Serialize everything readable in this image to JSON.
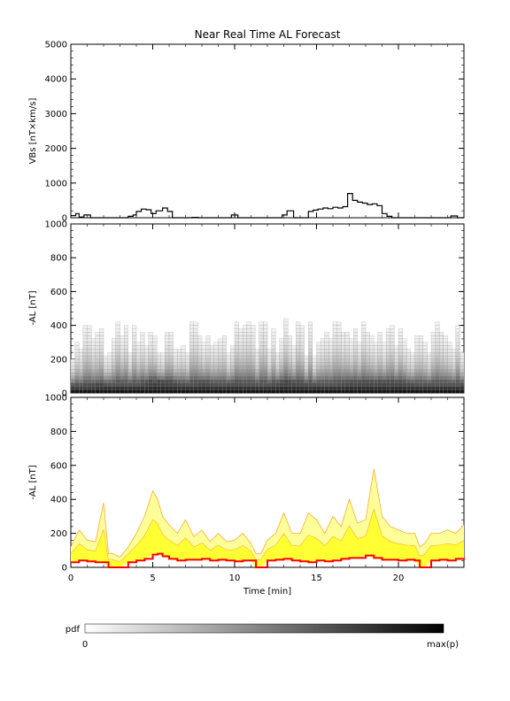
{
  "chart_data": {
    "type": "line",
    "title": "Near Real Time AL Forecast",
    "colors": {
      "axes": "#000000",
      "vbs_line": "#000000",
      "median_line": "#ff0000",
      "band_fill": "#ffff33",
      "band_outline": "#ffaa33",
      "band_light": "#ffff99"
    },
    "panels": [
      {
        "name": "vbs-panel",
        "ylabel": "VBs [nT×km/s]",
        "ylim": [
          0,
          5000
        ],
        "yticks": [
          "0",
          "1000",
          "2000",
          "3000",
          "4000",
          "5000"
        ],
        "series": [
          {
            "x": [
              0,
              0.3,
              0.5,
              0.8,
              1.2,
              1.6,
              2.0,
              2.4,
              2.8,
              3.2,
              3.5,
              3.8,
              4.0,
              4.3,
              4.6,
              4.9,
              5.2,
              5.6,
              5.9,
              6.2,
              6.6,
              7.0,
              7.4,
              7.8,
              8.2,
              8.6,
              9.0,
              9.4,
              9.8,
              10.2,
              10.6,
              11.0,
              11.4,
              11.8,
              12.2,
              12.6,
              12.9,
              13.2,
              13.6,
              14.0,
              14.2,
              14.5,
              14.8,
              15.1,
              15.4,
              15.7,
              16.0,
              16.3,
              16.6,
              16.9,
              17.2,
              17.5,
              17.8,
              18.1,
              18.4,
              18.7,
              19.0,
              19.3,
              19.6,
              20.0,
              20.4,
              20.8,
              21.2,
              21.6,
              22.0,
              22.4,
              22.8,
              23.2,
              23.6,
              24.0
            ],
            "values": [
              60,
              120,
              20,
              80,
              0,
              0,
              0,
              0,
              0,
              0,
              40,
              80,
              180,
              250,
              230,
              120,
              200,
              280,
              180,
              0,
              0,
              0,
              10,
              0,
              0,
              0,
              0,
              0,
              80,
              0,
              0,
              0,
              0,
              0,
              0,
              0,
              80,
              200,
              0,
              0,
              0,
              180,
              220,
              250,
              280,
              260,
              300,
              280,
              320,
              700,
              500,
              450,
              420,
              380,
              400,
              350,
              120,
              40,
              0,
              0,
              0,
              0,
              0,
              0,
              0,
              0,
              0,
              50,
              0,
              0
            ]
          }
        ]
      },
      {
        "name": "pdf-panel",
        "ylabel": "-AL [nT]",
        "ylim": [
          0,
          1000
        ],
        "yticks": [
          "0",
          "200",
          "400",
          "600",
          "800",
          "1000"
        ],
        "series": [
          {
            "x": [
              0,
              1,
              2,
              3,
              4,
              5,
              6,
              7,
              8,
              9,
              10,
              11,
              12,
              13,
              14,
              15,
              16,
              17,
              18,
              19,
              20,
              21,
              22,
              23,
              24
            ],
            "values": [
              30,
              30,
              40,
              40,
              40,
              60,
              50,
              40,
              50,
              40,
              45,
              40,
              40,
              55,
              45,
              40,
              40,
              50,
              50,
              50,
              50,
              40,
              40,
              40,
              40
            ]
          }
        ]
      },
      {
        "name": "band-panel",
        "ylabel": "-AL [nT]",
        "ylim": [
          0,
          1000
        ],
        "yticks": [
          "0",
          "200",
          "400",
          "600",
          "800",
          "1000"
        ],
        "xlabel": "Time [min]",
        "xlim": [
          0,
          24
        ],
        "xticks": [
          "0",
          "5",
          "10",
          "15",
          "20"
        ],
        "series": [
          {
            "name": "",
            "x": [
              0,
              0.5,
              1,
              1.5,
              2,
              2.3,
              2.6,
              3,
              3.5,
              4,
              4.5,
              5,
              5.3,
              5.6,
              6,
              6.5,
              7,
              7.5,
              8,
              8.5,
              9,
              9.5,
              10,
              10.5,
              11,
              11.3,
              11.6,
              12,
              12.5,
              13,
              13.5,
              14,
              14.5,
              15,
              15.5,
              16,
              16.5,
              17,
              17.5,
              18,
              18.5,
              19,
              19.5,
              20,
              20.5,
              21,
              21.3,
              21.6,
              22,
              22.5,
              23,
              23.5,
              24
            ],
            "values": [
              30,
              40,
              35,
              30,
              30,
              0,
              0,
              0,
              30,
              40,
              50,
              75,
              80,
              65,
              50,
              40,
              45,
              45,
              50,
              40,
              45,
              40,
              35,
              40,
              40,
              0,
              0,
              40,
              45,
              50,
              40,
              35,
              30,
              40,
              35,
              40,
              50,
              55,
              55,
              70,
              55,
              45,
              45,
              40,
              45,
              40,
              0,
              0,
              40,
              45,
              40,
              50,
              45
            ]
          },
          {
            "name": "",
            "x": [
              0,
              0.5,
              1,
              1.5,
              2,
              2.3,
              2.6,
              3,
              3.5,
              4,
              4.5,
              5,
              5.3,
              5.6,
              6,
              6.5,
              7,
              7.5,
              8,
              8.5,
              9,
              9.5,
              10,
              10.5,
              11,
              11.3,
              11.6,
              12,
              12.5,
              13,
              13.5,
              14,
              14.5,
              15,
              15.5,
              16,
              16.5,
              17,
              17.5,
              18,
              18.5,
              19,
              19.5,
              20,
              20.5,
              21,
              21.3,
              21.6,
              22,
              22.5,
              23,
              23.5,
              24
            ],
            "values": [
              120,
              220,
              160,
              150,
              380,
              80,
              80,
              60,
              120,
              200,
              300,
              450,
              400,
              300,
              250,
              200,
              280,
              180,
              220,
              150,
              200,
              150,
              160,
              200,
              140,
              80,
              80,
              160,
              200,
              320,
              200,
              200,
              320,
              280,
              200,
              300,
              240,
              400,
              260,
              280,
              580,
              300,
              240,
              220,
              200,
              200,
              120,
              140,
              200,
              200,
              220,
              200,
              250
            ]
          }
        ]
      }
    ],
    "colorbar": {
      "label": "pdf",
      "min_label": "0",
      "max_label": "max(p)"
    }
  }
}
